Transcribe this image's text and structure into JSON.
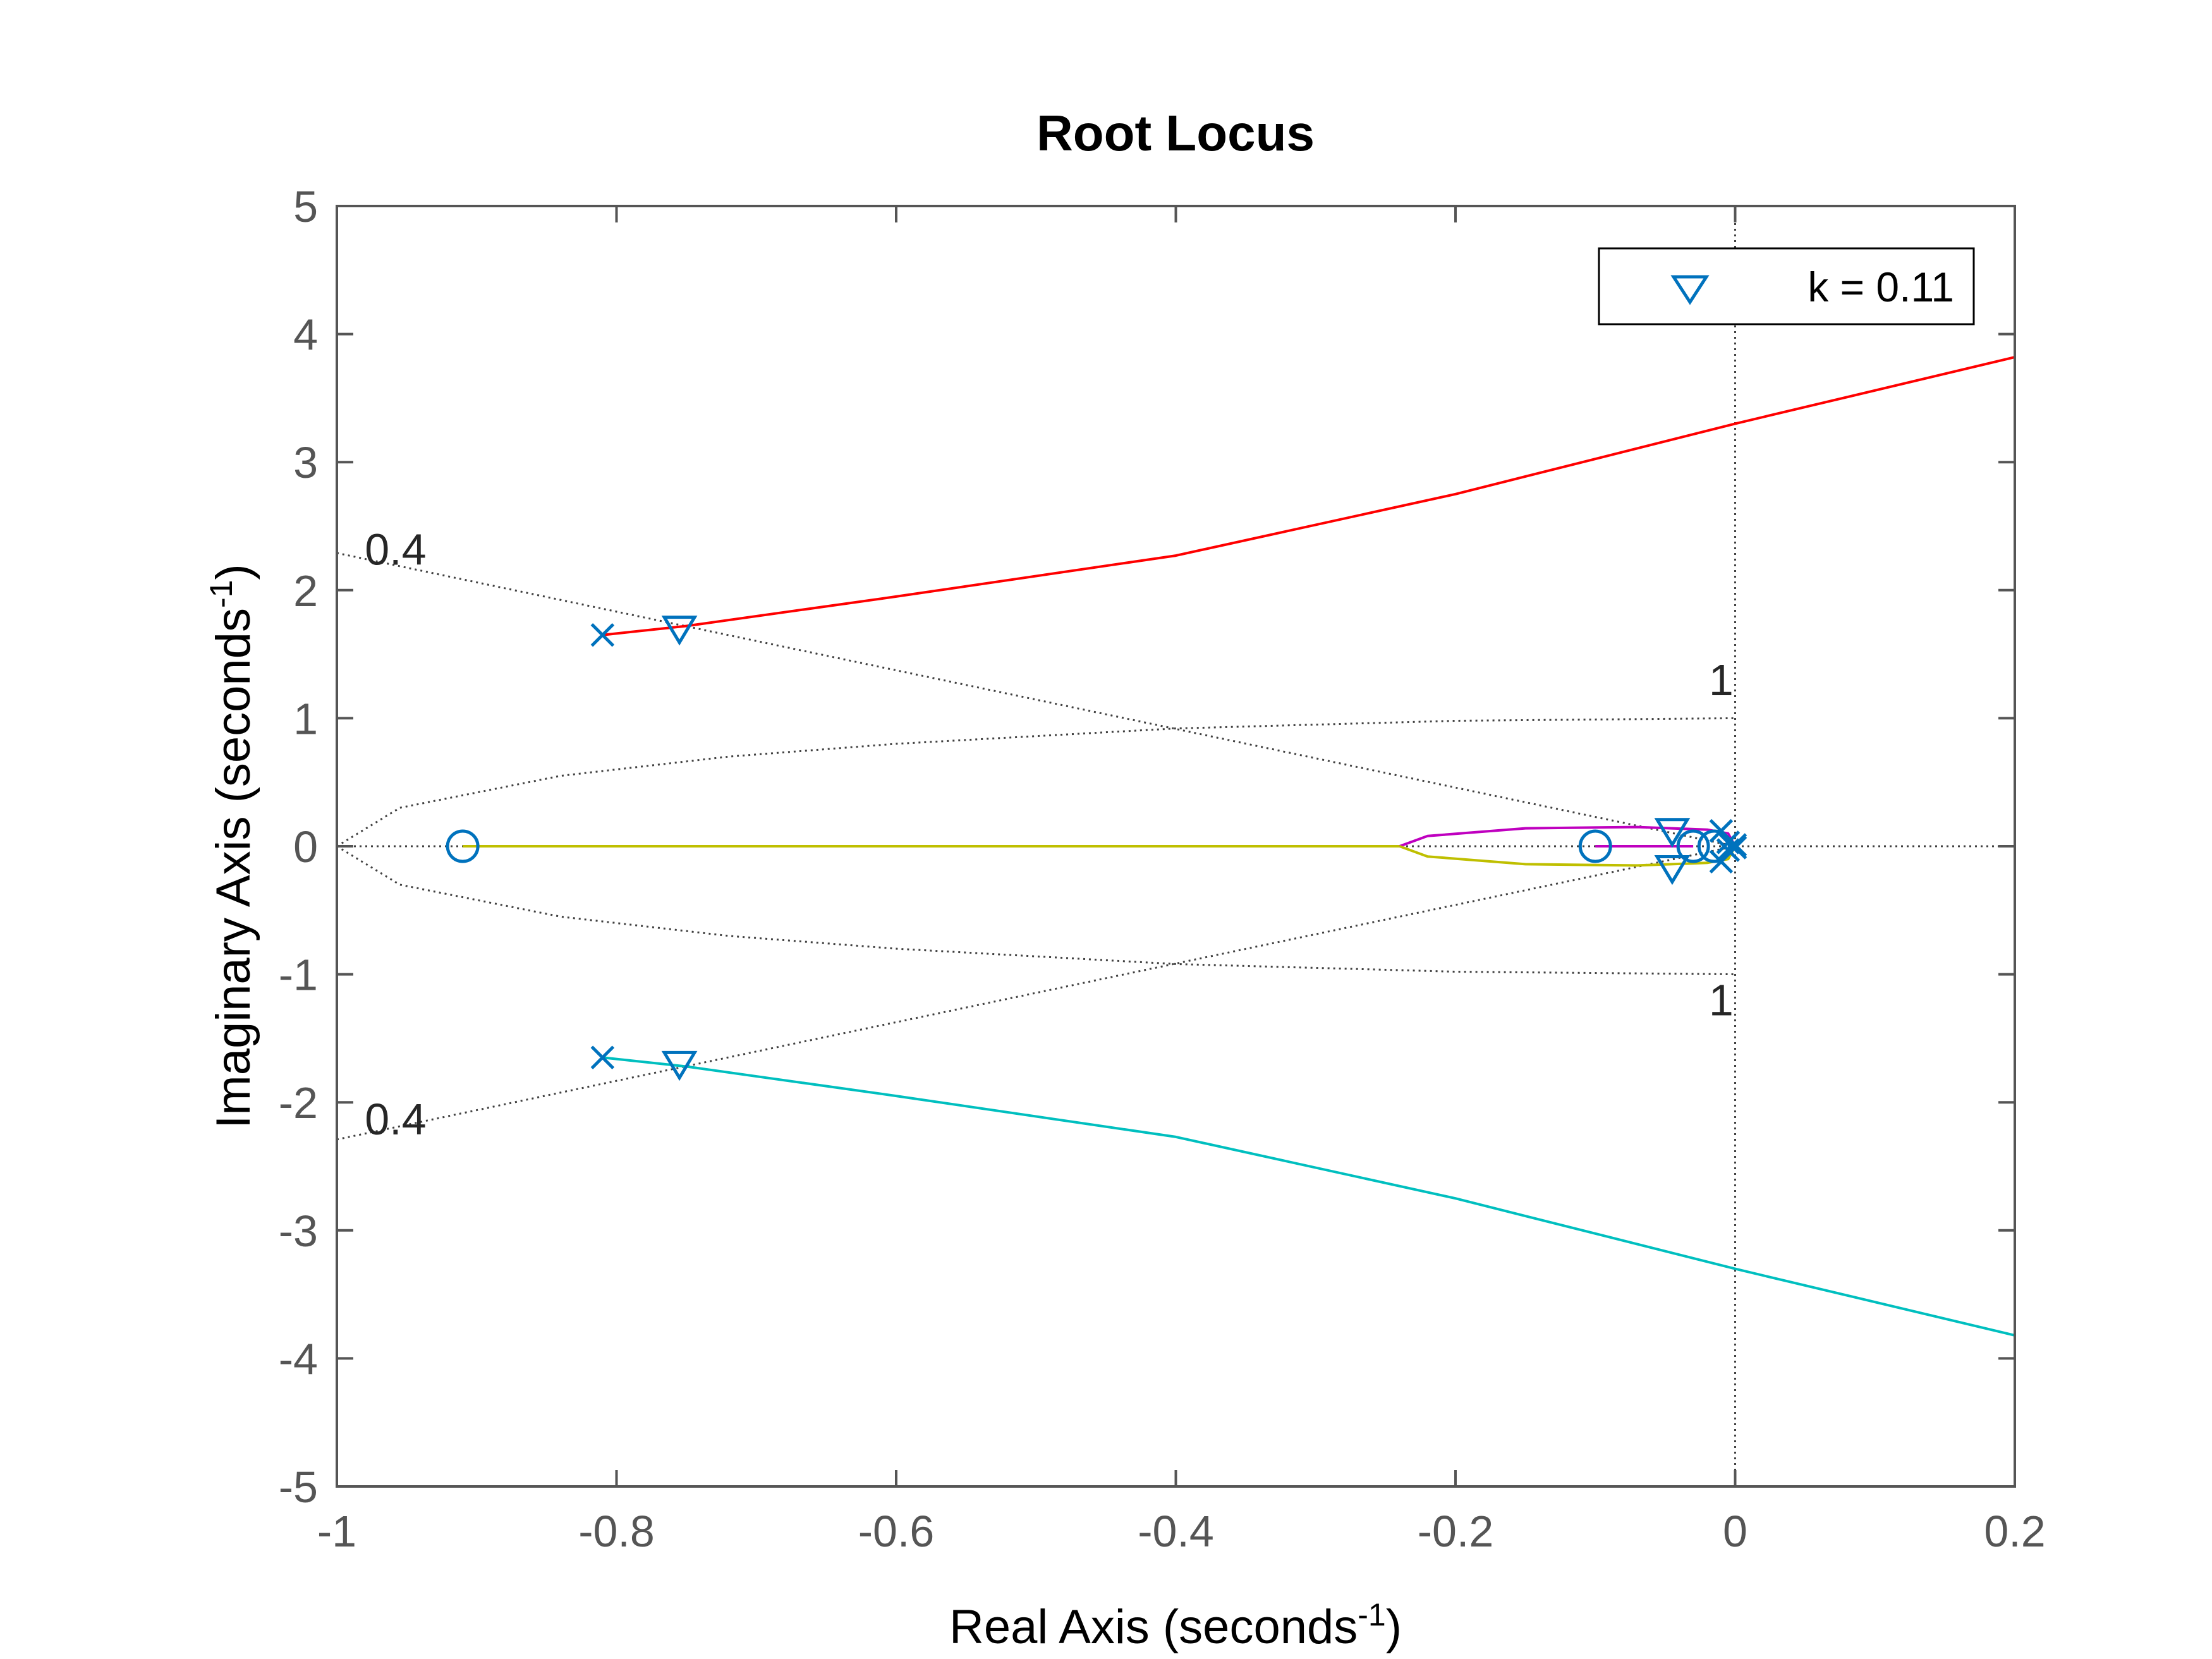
{
  "chart_data": {
    "type": "line",
    "title": "Root Locus",
    "xlabel": {
      "text": "Real Axis (seconds",
      "sup": "-1",
      "close": ")"
    },
    "ylabel": {
      "text": "Imaginary Axis (seconds",
      "sup": "-1",
      "close": ")"
    },
    "xlim": [
      -1,
      0.2
    ],
    "ylim": [
      -5,
      5
    ],
    "xticks": [
      -1,
      -0.8,
      -0.6,
      -0.4,
      -0.2,
      0,
      0.2
    ],
    "yticks": [
      -5,
      -4,
      -3,
      -2,
      -1,
      0,
      1,
      2,
      3,
      4,
      5
    ],
    "xtick_labels": [
      "-1",
      "-0.8",
      "-0.6",
      "-0.4",
      "-0.2",
      "0",
      "0.2"
    ],
    "ytick_labels": [
      "-5",
      "-4",
      "-3",
      "-2",
      "-1",
      "0",
      "1",
      "2",
      "3",
      "4",
      "5"
    ],
    "grid": false,
    "legend": {
      "placement": "top-right",
      "label": "k = 0.11",
      "marker": "triangle-down"
    },
    "colors": {
      "red": "#ff0000",
      "cyan": "#00bfbf",
      "magenta": "#bf00bf",
      "olive": "#bfbf00",
      "marker": "#0072bd",
      "grid": "#404040",
      "axis": "#555555"
    },
    "branches": [
      {
        "color": "red",
        "points": [
          [
            -0.81,
            1.65
          ],
          [
            -0.75,
            1.72
          ],
          [
            -0.6,
            1.95
          ],
          [
            -0.4,
            2.27
          ],
          [
            -0.2,
            2.75
          ],
          [
            0,
            3.3
          ],
          [
            0.2,
            3.82
          ]
        ]
      },
      {
        "color": "cyan",
        "points": [
          [
            -0.81,
            -1.65
          ],
          [
            -0.75,
            -1.72
          ],
          [
            -0.6,
            -1.95
          ],
          [
            -0.4,
            -2.27
          ],
          [
            -0.2,
            -2.75
          ],
          [
            0,
            -3.3
          ],
          [
            0.2,
            -3.82
          ]
        ]
      },
      {
        "color": "magenta",
        "points": [
          [
            -0.24,
            0
          ],
          [
            -0.22,
            0.08
          ],
          [
            -0.15,
            0.14
          ],
          [
            -0.07,
            0.15
          ],
          [
            -0.02,
            0.13
          ],
          [
            -0.005,
            0.1
          ],
          [
            0,
            0
          ]
        ]
      },
      {
        "color": "olive",
        "points": [
          [
            -0.24,
            0
          ],
          [
            -0.22,
            -0.08
          ],
          [
            -0.15,
            -0.14
          ],
          [
            -0.07,
            -0.15
          ],
          [
            -0.02,
            -0.13
          ],
          [
            -0.005,
            -0.1
          ],
          [
            0,
            0
          ]
        ]
      },
      {
        "color": "olive",
        "points": [
          [
            -0.91,
            0
          ],
          [
            -0.24,
            0
          ]
        ]
      },
      {
        "color": "magenta",
        "points": [
          [
            -0.1,
            0
          ],
          [
            -0.03,
            0
          ]
        ]
      }
    ],
    "poles": [
      [
        -0.81,
        1.65
      ],
      [
        -0.81,
        -1.65
      ],
      [
        -0.01,
        0.12
      ],
      [
        -0.01,
        -0.12
      ],
      [
        -0.005,
        0.03
      ],
      [
        -0.005,
        -0.03
      ],
      [
        0,
        0.01
      ],
      [
        0,
        -0.01
      ]
    ],
    "zeros": [
      [
        -0.91,
        0
      ],
      [
        -0.1,
        0
      ],
      [
        -0.03,
        0
      ],
      [
        -0.015,
        0
      ]
    ],
    "k_markers": [
      [
        -0.755,
        1.7
      ],
      [
        -0.755,
        -1.7
      ],
      [
        -0.045,
        0.12
      ],
      [
        -0.045,
        -0.17
      ]
    ],
    "damping_lines": [
      {
        "label": "0.4",
        "points": [
          [
            -1,
            2.29
          ],
          [
            0,
            0
          ]
        ],
        "label_at": [
          -0.98,
          2.2
        ]
      },
      {
        "label": "0.4",
        "points": [
          [
            -1,
            -2.29
          ],
          [
            0,
            0
          ]
        ],
        "label_at": [
          -0.98,
          -2.25
        ]
      }
    ],
    "frequency_curves": [
      {
        "label": "1",
        "points": [
          [
            -1,
            0
          ],
          [
            -0.955,
            0.3
          ],
          [
            -0.84,
            0.55
          ],
          [
            -0.72,
            0.7
          ],
          [
            -0.6,
            0.8
          ],
          [
            -0.4,
            0.92
          ],
          [
            -0.2,
            0.98
          ],
          [
            0,
            1
          ]
        ],
        "label_at": [
          -0.01,
          1.18
        ]
      },
      {
        "label": "1",
        "points": [
          [
            -1,
            0
          ],
          [
            -0.955,
            -0.3
          ],
          [
            -0.84,
            -0.55
          ],
          [
            -0.72,
            -0.7
          ],
          [
            -0.6,
            -0.8
          ],
          [
            -0.4,
            -0.92
          ],
          [
            -0.2,
            -0.98
          ],
          [
            0,
            -1
          ]
        ],
        "label_at": [
          -0.01,
          -1.32
        ]
      }
    ]
  }
}
